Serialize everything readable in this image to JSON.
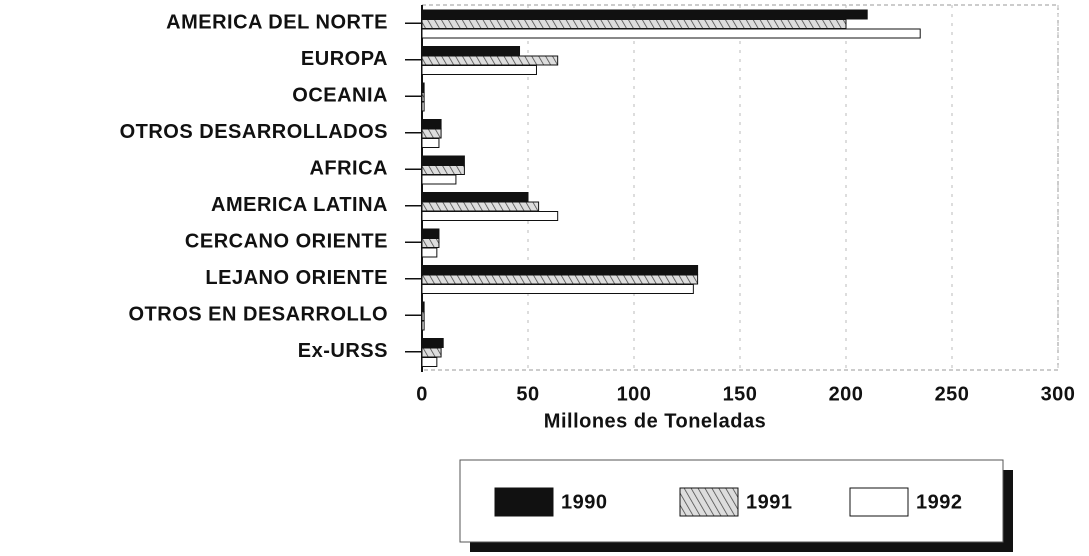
{
  "chart_data": {
    "type": "hbar",
    "categories": [
      "AMERICA DEL NORTE",
      "EUROPA",
      "OCEANIA",
      "OTROS DESARROLLADOS",
      "AFRICA",
      "AMERICA LATINA",
      "CERCANO ORIENTE",
      "LEJANO ORIENTE",
      "OTROS EN DESARROLLO",
      "Ex-URSS"
    ],
    "series": [
      {
        "name": "1990",
        "color": "#111111",
        "pattern": "solid",
        "values": [
          210,
          46,
          1,
          9,
          20,
          50,
          8,
          130,
          1,
          10
        ]
      },
      {
        "name": "1991",
        "color": "#777777",
        "pattern": "hatch",
        "values": [
          200,
          64,
          1,
          9,
          20,
          55,
          8,
          130,
          1,
          9
        ]
      },
      {
        "name": "1992",
        "color": "#ffffff",
        "pattern": "solid",
        "values": [
          235,
          54,
          1,
          8,
          16,
          64,
          7,
          128,
          1,
          7
        ]
      }
    ],
    "xlabel": "Millones de Toneladas",
    "xlim": [
      0,
      300
    ],
    "xticks": [
      0,
      50,
      100,
      150,
      200,
      250,
      300
    ],
    "grid": true,
    "legend": "bottom"
  }
}
